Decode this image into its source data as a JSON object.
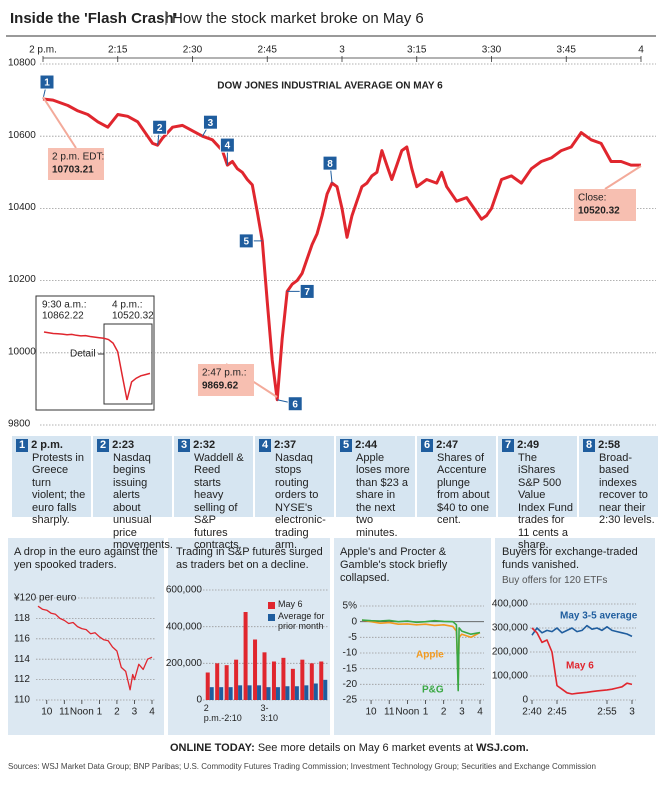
{
  "header": {
    "title": "Inside the 'Flash Crash'",
    "subtitle": "How the stock market broke on May 6"
  },
  "chart_data": [
    {
      "type": "line",
      "title": "DOW JONES INDUSTRIAL AVERAGE ON MAY 6",
      "color": "#e0262e",
      "x": [
        0,
        2,
        5,
        7,
        9,
        11,
        13,
        15,
        17,
        19,
        21,
        22,
        23,
        24,
        26,
        28,
        30,
        32,
        34,
        36,
        37,
        38,
        39,
        40,
        41,
        42,
        43,
        44,
        45,
        46,
        47,
        48,
        49,
        50,
        51,
        52,
        53,
        54,
        55,
        56,
        57,
        58,
        59,
        60,
        61,
        62,
        63,
        64,
        65,
        66,
        67,
        68,
        69,
        70,
        71,
        72,
        73,
        74,
        75,
        77,
        79,
        80,
        81,
        83,
        85,
        87,
        88,
        89,
        90,
        92,
        94,
        96,
        98,
        100,
        102,
        104,
        106,
        108,
        110,
        112,
        114,
        116,
        118,
        120
      ],
      "values": [
        10703,
        10700,
        10685,
        10670,
        10660,
        10640,
        10625,
        10660,
        10655,
        10640,
        10600,
        10580,
        10575,
        10595,
        10625,
        10630,
        10615,
        10600,
        10590,
        10560,
        10520,
        10530,
        10510,
        10500,
        10480,
        10465,
        10390,
        10310,
        10140,
        9980,
        9870,
        10040,
        10170,
        10190,
        10200,
        10220,
        10260,
        10300,
        10330,
        10380,
        10440,
        10470,
        10460,
        10400,
        10320,
        10380,
        10420,
        10460,
        10470,
        10490,
        10500,
        10560,
        10520,
        10480,
        10520,
        10560,
        10570,
        10510,
        10460,
        10480,
        10470,
        10500,
        10460,
        10420,
        10430,
        10390,
        10370,
        10380,
        10400,
        10480,
        10490,
        10470,
        10510,
        10530,
        10540,
        10560,
        10570,
        10610,
        10590,
        10580,
        10530,
        10530,
        10520,
        10520
      ],
      "xlim": [
        0,
        120
      ],
      "xticks": [
        {
          "value": 0,
          "label": "2 p.m."
        },
        {
          "value": 15,
          "label": "2:15"
        },
        {
          "value": 30,
          "label": "2:30"
        },
        {
          "value": 45,
          "label": "2:45"
        },
        {
          "value": 60,
          "label": "3"
        },
        {
          "value": 75,
          "label": "3:15"
        },
        {
          "value": 90,
          "label": "3:30"
        },
        {
          "value": 105,
          "label": "3:45"
        },
        {
          "value": 120,
          "label": "4"
        }
      ],
      "ylim": [
        9800,
        10800
      ],
      "yticks": [
        9800,
        10000,
        10200,
        10400,
        10600,
        10800
      ],
      "grid": true,
      "annotations": [
        {
          "label": "2 p.m. EDT:",
          "value": 10703.21
        },
        {
          "label": "2:47 p.m.:",
          "value": 9869.62
        },
        {
          "label": "Close:",
          "value": 10520.32
        }
      ],
      "markers": [
        {
          "label": "1",
          "x": 0
        },
        {
          "label": "2",
          "x": 23
        },
        {
          "label": "3",
          "x": 32
        },
        {
          "label": "4",
          "x": 37
        },
        {
          "label": "5",
          "x": 44
        },
        {
          "label": "6",
          "x": 47
        },
        {
          "label": "7",
          "x": 49
        },
        {
          "label": "8",
          "x": 58
        }
      ]
    },
    {
      "type": "line",
      "color": "#e0262e",
      "values": [
        10862,
        10855,
        10850,
        10848,
        10845,
        10840,
        10842,
        10835,
        10830,
        10832,
        10825,
        10820,
        10815,
        10810,
        10800,
        10770,
        10700,
        10500,
        10300,
        10450,
        10480,
        10500,
        10510,
        10520
      ],
      "annotations": [
        {
          "label": "9:30 a.m.:",
          "value": 10862.22
        },
        {
          "label": "4 p.m.:",
          "value": 10520.32
        }
      ],
      "callout": "Detail"
    },
    {
      "type": "line",
      "title": "A drop in the euro against the yen spooked traders.",
      "color": "#e0262e",
      "x": [
        9.5,
        9.75,
        10,
        10.25,
        10.5,
        10.75,
        11,
        11.25,
        11.5,
        11.75,
        12,
        12.25,
        12.5,
        12.75,
        13,
        13.25,
        13.5,
        13.75,
        14,
        14.25,
        14.5,
        14.75,
        14.9,
        15,
        15.25,
        15.5,
        15.75,
        16
      ],
      "values": [
        119.2,
        118.9,
        118.8,
        118.5,
        118.4,
        118.0,
        117.8,
        117.5,
        117.6,
        117.2,
        117.0,
        116.9,
        116.5,
        116.6,
        116.2,
        115.9,
        115.8,
        115.2,
        114.8,
        113.2,
        112.8,
        111.0,
        112.5,
        112.0,
        113.5,
        113.0,
        114.0,
        114.2
      ],
      "xlim": [
        9.5,
        16
      ],
      "xticks": [
        10,
        11,
        {
          "value": 12,
          "label": "Noon"
        },
        {
          "value": 13,
          "label": "1"
        },
        {
          "value": 14,
          "label": "2"
        },
        {
          "value": 15,
          "label": "3"
        },
        {
          "value": 16,
          "label": "4"
        }
      ],
      "ylim": [
        110,
        120
      ],
      "yticks": [
        110,
        112,
        114,
        116,
        118,
        {
          "value": 120,
          "label": "¥120 per euro"
        }
      ],
      "grid": true
    },
    {
      "type": "bar",
      "title": "Trading in S&P futures surged as traders bet on a decline.",
      "categories": [
        "2 p.m.-2:10",
        null,
        null,
        null,
        null,
        null,
        "3-3:10",
        null,
        null,
        null,
        null,
        null,
        null
      ],
      "series": [
        {
          "name": "May 6",
          "color": "#e0262e",
          "values": [
            150000,
            200000,
            190000,
            220000,
            480000,
            330000,
            260000,
            210000,
            230000,
            170000,
            220000,
            200000,
            210000
          ]
        },
        {
          "name": "Average for prior month",
          "color": "#1f5d9e",
          "values": [
            70000,
            70000,
            70000,
            80000,
            80000,
            80000,
            70000,
            70000,
            75000,
            75000,
            80000,
            90000,
            110000
          ]
        }
      ],
      "ylim": [
        0,
        600000
      ],
      "yticks": [
        0,
        {
          "value": 200000,
          "label": "200,000"
        },
        {
          "value": 400000,
          "label": "400,000"
        },
        {
          "value": 600000,
          "label": "600,000"
        }
      ],
      "grid": true
    },
    {
      "type": "line",
      "title": "Apple's and Procter & Gamble's stock briefly collapsed.",
      "x": [
        9.5,
        10,
        10.5,
        11,
        11.5,
        12,
        12.5,
        13,
        13.5,
        14,
        14.5,
        14.7,
        14.8,
        14.85,
        15,
        15.5,
        16
      ],
      "series": [
        {
          "name": "Apple",
          "color": "#f29a1f",
          "values": [
            0.5,
            0,
            -0.5,
            -0.3,
            -0.8,
            -0.7,
            -1,
            -0.8,
            -1.2,
            -1,
            -1.5,
            -3,
            -19,
            -5,
            -4,
            -5,
            -3.5
          ]
        },
        {
          "name": "P&G",
          "color": "#3aa843",
          "values": [
            0.5,
            0.3,
            0.2,
            0.4,
            0,
            0.2,
            -0.2,
            0,
            0.3,
            0.1,
            0,
            -1,
            -22,
            -2,
            -3,
            -4,
            -3.5
          ]
        }
      ],
      "xlim": [
        9.5,
        16
      ],
      "xticks": [
        10,
        11,
        {
          "value": 12,
          "label": "Noon"
        },
        {
          "value": 13,
          "label": "1"
        },
        {
          "value": 14,
          "label": "2"
        },
        {
          "value": 15,
          "label": "3"
        },
        {
          "value": 16,
          "label": "4"
        }
      ],
      "ylim": [
        -25,
        5
      ],
      "yticks": [
        -25,
        -20,
        -15,
        -10,
        -5,
        0,
        {
          "value": 5,
          "label": "5%"
        }
      ],
      "grid": true
    },
    {
      "type": "line",
      "title": "Buyers for exchange-traded funds vanished.",
      "subtitle": "Buy offers for 120 ETFs",
      "x": [
        40,
        41,
        42,
        43,
        44,
        45,
        46,
        47,
        48,
        49,
        50,
        51,
        52,
        53,
        54,
        55,
        56,
        57,
        58,
        59,
        60
      ],
      "series": [
        {
          "name": "May 3-5 average",
          "color": "#1f5d9e",
          "values": [
            270000,
            300000,
            280000,
            290000,
            285000,
            300000,
            280000,
            290000,
            300000,
            285000,
            290000,
            310000,
            295000,
            300000,
            290000,
            305000,
            290000,
            285000,
            280000,
            275000,
            265000
          ]
        },
        {
          "name": "May 6",
          "color": "#e0262e",
          "values": [
            300000,
            280000,
            240000,
            250000,
            200000,
            60000,
            45000,
            30000,
            25000,
            28000,
            30000,
            32000,
            35000,
            38000,
            40000,
            42000,
            45000,
            50000,
            55000,
            70000,
            65000
          ]
        }
      ],
      "xlim": [
        40,
        60
      ],
      "xticks": [
        {
          "value": 40,
          "label": "2:40"
        },
        {
          "value": 45,
          "label": "2:45"
        },
        {
          "value": 55,
          "label": "2:55"
        },
        {
          "value": 60,
          "label": "3"
        }
      ],
      "ylim": [
        0,
        400000
      ],
      "yticks": [
        0,
        {
          "value": 100000,
          "label": "100,000"
        },
        {
          "value": 200000,
          "label": "200,000"
        },
        {
          "value": 300000,
          "label": "300,000"
        },
        {
          "value": 400000,
          "label": "400,000"
        }
      ],
      "grid": true
    }
  ],
  "events": [
    {
      "number": "1",
      "time": "2 p.m.",
      "text": "Protests in Greece turn violent; the euro falls sharply."
    },
    {
      "number": "2",
      "time": "2:23",
      "text": "Nasdaq begins issuing alerts about unusual price movements."
    },
    {
      "number": "3",
      "time": "2:32",
      "text": "Waddell & Reed starts heavy selling of S&P futures contracts."
    },
    {
      "number": "4",
      "time": "2:37",
      "text": "Nasdaq stops routing orders to NYSE's electronic-trading arm."
    },
    {
      "number": "5",
      "time": "2:44",
      "text": "Apple loses more than $23 a share in the next two minutes."
    },
    {
      "number": "6",
      "time": "2:47",
      "text": "Shares of Accenture plunge from about $40 to one cent."
    },
    {
      "number": "7",
      "time": "2:49",
      "text": "The iShares S&P 500 Value Index Fund trades for 11 cents a share."
    },
    {
      "number": "8",
      "time": "2:58",
      "text": "Broad-based indexes recover to near their 2:30 levels."
    }
  ],
  "footer": {
    "online_label": "ONLINE TODAY:",
    "online_text": "See more details on May 6 market events at",
    "online_link": "WSJ.com.",
    "sources": "Sources: WSJ Market Data Group; BNP Paribas; U.S. Commodity Futures Trading Commission; Investment Technology Group; Securities and Exchange Commission"
  }
}
